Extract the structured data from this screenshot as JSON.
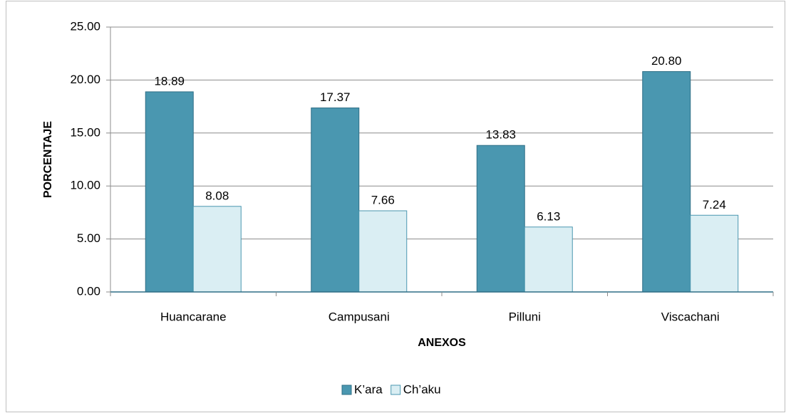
{
  "chart_data": {
    "type": "bar",
    "x_label": "ANEXOS",
    "y_label": "PORCENTAJE",
    "categories": [
      "Huancarane",
      "Campusani",
      "Pilluni",
      "Viscachani"
    ],
    "series": [
      {
        "name": "K’ara",
        "color": "#4a97b0",
        "values": [
          18.89,
          17.37,
          13.83,
          20.8
        ],
        "value_labels": [
          "18.89",
          "17.37",
          "13.83",
          "20.80"
        ]
      },
      {
        "name": "Ch’aku",
        "color": "#daeef3",
        "values": [
          8.08,
          7.66,
          6.13,
          7.24
        ],
        "value_labels": [
          "8.08",
          "7.66",
          "6.13",
          "7.24"
        ]
      }
    ],
    "ylim": [
      0,
      25
    ],
    "yticks": [
      {
        "value": 0,
        "label": "0.00"
      },
      {
        "value": 5,
        "label": "5.00"
      },
      {
        "value": 10,
        "label": "10.00"
      },
      {
        "value": 15,
        "label": "15.00"
      },
      {
        "value": 20,
        "label": "20.00"
      },
      {
        "value": 25,
        "label": "25.00"
      }
    ],
    "grid": true,
    "legend": "bottom"
  }
}
